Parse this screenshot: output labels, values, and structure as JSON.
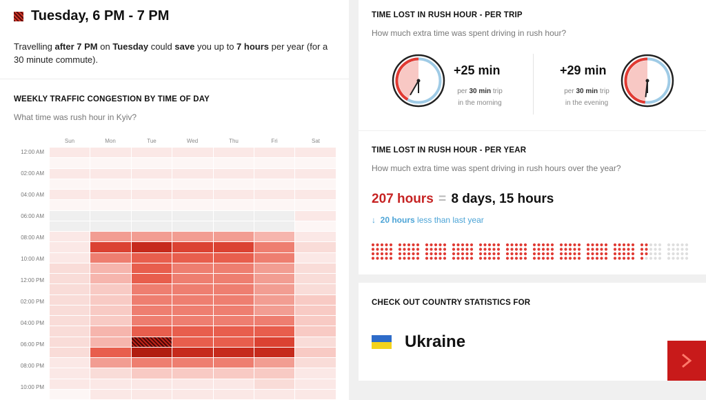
{
  "best_time": {
    "title": "Tuesday, 6 PM - 7 PM",
    "t1": "Travelling ",
    "b1": "after 7 PM",
    "t2": " on ",
    "b2": "Tuesday",
    "t3": " could ",
    "b3": "save",
    "t4": " you up to ",
    "b4": "7 hours",
    "t5": " per year (for a 30 minute commute)."
  },
  "weekly": {
    "title": "WEEKLY TRAFFIC CONGESTION BY TIME OF DAY",
    "subtitle": "What time was rush hour in Kyiv?",
    "days": [
      "Sun",
      "Mon",
      "Tue",
      "Wed",
      "Thu",
      "Fri",
      "Sat"
    ],
    "time_labels": [
      "12:00 AM",
      "02:00 AM",
      "04:00 AM",
      "06:00 AM",
      "08:00 AM",
      "10:00 AM",
      "12:00 PM",
      "02:00 PM",
      "04:00 PM",
      "06:00 PM",
      "08:00 PM",
      "10:00 PM"
    ],
    "best_slot": {
      "day": "Tue",
      "hour": "6 PM"
    },
    "levels": [
      [
        1,
        1,
        1,
        1,
        1,
        1,
        1
      ],
      [
        0,
        0,
        0,
        0,
        0,
        0,
        0
      ],
      [
        1,
        1,
        1,
        1,
        1,
        1,
        1
      ],
      [
        0,
        0,
        0,
        0,
        0,
        0,
        0
      ],
      [
        1,
        1,
        1,
        1,
        1,
        1,
        1
      ],
      [
        0,
        0,
        0,
        0,
        0,
        0,
        0
      ],
      [
        -1,
        -1,
        -1,
        -1,
        -1,
        -1,
        1
      ],
      [
        -1,
        -1,
        -1,
        -1,
        -1,
        -1,
        0
      ],
      [
        1,
        5,
        5,
        5,
        5,
        4,
        1
      ],
      [
        1,
        8,
        9,
        8,
        8,
        6,
        2
      ],
      [
        1,
        6,
        7,
        7,
        7,
        6,
        1
      ],
      [
        2,
        4,
        7,
        6,
        6,
        5,
        2
      ],
      [
        2,
        4,
        7,
        6,
        6,
        5,
        2
      ],
      [
        2,
        3,
        6,
        6,
        6,
        5,
        2
      ],
      [
        2,
        3,
        6,
        6,
        6,
        5,
        3
      ],
      [
        2,
        3,
        6,
        6,
        6,
        5,
        3
      ],
      [
        2,
        3,
        6,
        6,
        6,
        6,
        3
      ],
      [
        2,
        4,
        7,
        7,
        7,
        7,
        3
      ],
      [
        2,
        4,
        8,
        7,
        7,
        8,
        2
      ],
      [
        2,
        7,
        10,
        9,
        9,
        9,
        3
      ],
      [
        1,
        5,
        6,
        6,
        6,
        5,
        2
      ],
      [
        1,
        2,
        3,
        3,
        3,
        3,
        1
      ],
      [
        1,
        1,
        1,
        1,
        1,
        2,
        1
      ],
      [
        0,
        1,
        1,
        1,
        1,
        1,
        1
      ]
    ]
  },
  "per_trip": {
    "title": "TIME LOST IN RUSH HOUR - PER TRIP",
    "subtitle": "How much extra time was spent driving in rush hour?",
    "morning": {
      "value": "+25 min",
      "l1_a": "per ",
      "l1_b": "30 min",
      "l1_c": " trip",
      "l2": "in the morning",
      "minutes": 25
    },
    "evening": {
      "value": "+29 min",
      "l1_a": "per ",
      "l1_b": "30 min",
      "l1_c": " trip",
      "l2": "in the evening",
      "minutes": 29
    }
  },
  "per_year": {
    "title": "TIME LOST IN RUSH HOUR - PER YEAR",
    "subtitle": "How much extra time was spent driving in rush hours over the year?",
    "hours": "207 hours",
    "equals": "=",
    "days": "8 days, 15 hours",
    "diff_value": "20 hours",
    "diff_text": " less than last year",
    "dots_filled": 207,
    "dots_total": 240
  },
  "country": {
    "title": "CHECK OUT COUNTRY STATISTICS FOR",
    "name": "Ukraine"
  },
  "colors": {
    "accent": "#c81a1a",
    "blue": "#4aa3d6"
  },
  "icons": {
    "arrow": "chevron-right-icon",
    "down": "arrow-down-icon"
  }
}
